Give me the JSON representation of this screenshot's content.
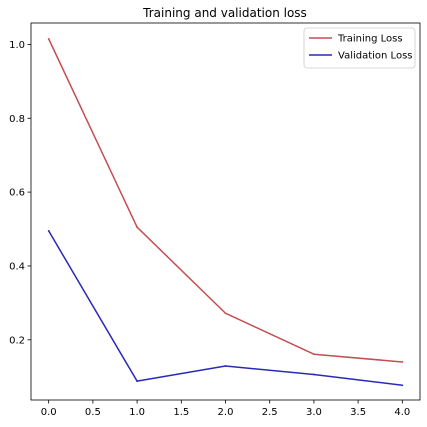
{
  "chart_data": {
    "type": "line",
    "title": "Training and validation loss",
    "xlabel": "",
    "ylabel": "",
    "x": [
      0,
      1,
      2,
      3,
      4
    ],
    "xlim": [
      -0.2,
      4.2
    ],
    "ylim": [
      0.037,
      1.058
    ],
    "xticks": [
      0.0,
      0.5,
      1.0,
      1.5,
      2.0,
      2.5,
      3.0,
      3.5,
      4.0
    ],
    "xtick_labels": [
      "0.0",
      "0.5",
      "1.0",
      "1.5",
      "2.0",
      "2.5",
      "3.0",
      "3.5",
      "4.0"
    ],
    "yticks": [
      0.2,
      0.4,
      0.6,
      0.8,
      1.0
    ],
    "ytick_labels": [
      "0.2",
      "0.4",
      "0.6",
      "0.8",
      "1.0"
    ],
    "grid": false,
    "legend_position": "top-right",
    "series": [
      {
        "name": "Training Loss",
        "color": "#c44e52",
        "values": [
          1.015,
          0.505,
          0.272,
          0.161,
          0.14
        ]
      },
      {
        "name": "Validation Loss",
        "color": "#2a2ab8",
        "values": [
          0.495,
          0.088,
          0.129,
          0.106,
          0.077
        ]
      }
    ]
  }
}
